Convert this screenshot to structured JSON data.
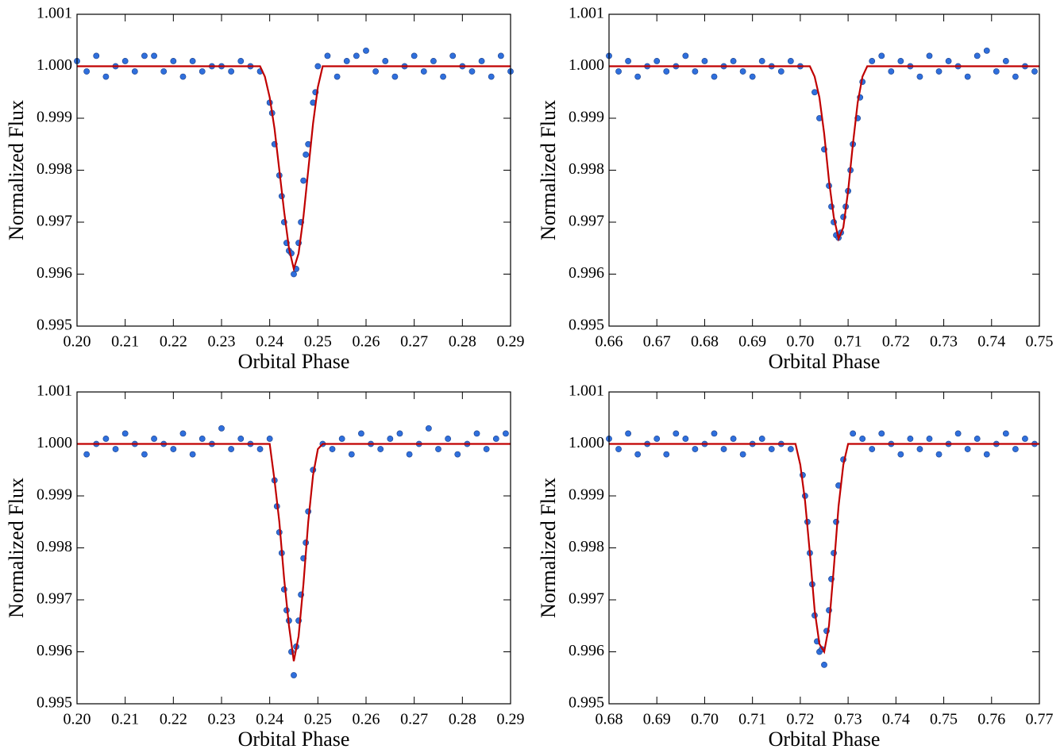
{
  "chart_data": [
    {
      "type": "scatter",
      "xlabel": "Orbital Phase",
      "ylabel": "Normalized Flux",
      "xlim": [
        0.2,
        0.29
      ],
      "ylim": [
        0.995,
        1.001
      ],
      "xticks": [
        {
          "value": 0.2,
          "label": "0.20"
        },
        0.21,
        0.22,
        0.23,
        0.24,
        0.25,
        0.26,
        0.27,
        0.28,
        0.29
      ],
      "yticks": [
        0.995,
        0.996,
        0.997,
        0.998,
        0.999,
        {
          "value": 1,
          "label": "1.000"
        },
        1.001
      ],
      "series": [
        {
          "mode": "markers",
          "color": "#2f6fdc",
          "x": [
            0.2,
            0.202,
            0.204,
            0.206,
            0.208,
            0.21,
            0.212,
            0.214,
            0.216,
            0.218,
            0.22,
            0.222,
            0.224,
            0.226,
            0.228,
            0.23,
            0.232,
            0.234,
            0.236,
            0.238,
            0.24,
            0.2405,
            0.241,
            0.242,
            0.2425,
            0.243,
            0.2435,
            0.244,
            0.2445,
            0.245,
            0.2455,
            0.246,
            0.2465,
            0.247,
            0.2475,
            0.248,
            0.249,
            0.2495,
            0.25,
            0.252,
            0.254,
            0.256,
            0.258,
            0.26,
            0.262,
            0.264,
            0.266,
            0.268,
            0.27,
            0.272,
            0.274,
            0.276,
            0.278,
            0.28,
            0.282,
            0.284,
            0.286,
            0.288,
            0.29
          ],
          "values": [
            1.0001,
            0.9999,
            1.0002,
            0.9998,
            1,
            1.0001,
            0.9999,
            1.0002,
            1.0002,
            0.9999,
            1.0001,
            0.9998,
            1.0001,
            0.9999,
            1,
            1,
            0.9999,
            1.0001,
            1,
            0.9999,
            0.9993,
            0.9991,
            0.9985,
            0.9979,
            0.9975,
            0.997,
            0.9966,
            0.99645,
            0.9964,
            0.996,
            0.9961,
            0.9966,
            0.997,
            0.9978,
            0.9983,
            0.9985,
            0.9993,
            0.9995,
            1,
            1.0002,
            0.9998,
            1.0001,
            1.0002,
            1.0003,
            0.9999,
            1.0001,
            0.9998,
            1,
            1.0002,
            0.9999,
            1.0001,
            0.9998,
            1.0002,
            1,
            0.9999,
            1.0001,
            0.9998,
            1.0002,
            0.9999
          ]
        },
        {
          "mode": "lines",
          "color": "#c00000",
          "x": [
            0.2,
            0.238,
            0.239,
            0.24,
            0.241,
            0.242,
            0.243,
            0.244,
            0.245,
            0.246,
            0.247,
            0.248,
            0.249,
            0.25,
            0.251,
            0.29
          ],
          "values": [
            1,
            1,
            0.9998,
            0.9994,
            0.9988,
            0.998,
            0.9972,
            0.9965,
            0.9961,
            0.9964,
            0.9971,
            0.998,
            0.9989,
            0.9996,
            1,
            1
          ]
        }
      ]
    },
    {
      "type": "scatter",
      "xlabel": "Orbital Phase",
      "ylabel": "Normalized Flux",
      "xlim": [
        0.66,
        0.75
      ],
      "ylim": [
        0.995,
        1.001
      ],
      "xticks": [
        0.66,
        0.67,
        0.68,
        0.69,
        {
          "value": 0.7,
          "label": "0.70"
        },
        0.71,
        0.72,
        0.73,
        0.74,
        0.75
      ],
      "yticks": [
        0.995,
        0.996,
        0.997,
        0.998,
        0.999,
        {
          "value": 1,
          "label": "1.000"
        },
        1.001
      ],
      "series": [
        {
          "mode": "markers",
          "color": "#2f6fdc",
          "x": [
            0.66,
            0.662,
            0.664,
            0.666,
            0.668,
            0.67,
            0.672,
            0.674,
            0.676,
            0.678,
            0.68,
            0.682,
            0.684,
            0.686,
            0.688,
            0.69,
            0.692,
            0.694,
            0.696,
            0.698,
            0.7,
            0.703,
            0.704,
            0.705,
            0.706,
            0.7065,
            0.707,
            0.7075,
            0.708,
            0.7085,
            0.709,
            0.7095,
            0.71,
            0.7105,
            0.711,
            0.712,
            0.7125,
            0.713,
            0.715,
            0.717,
            0.719,
            0.721,
            0.723,
            0.725,
            0.727,
            0.729,
            0.731,
            0.733,
            0.735,
            0.737,
            0.739,
            0.741,
            0.743,
            0.745,
            0.747,
            0.749
          ],
          "values": [
            1.0002,
            0.9999,
            1.0001,
            0.9998,
            1,
            1.0001,
            0.9999,
            1,
            1.0002,
            0.9999,
            1.0001,
            0.9998,
            1,
            1.0001,
            0.9999,
            0.9998,
            1.0001,
            1,
            0.9999,
            1.0001,
            1,
            0.9995,
            0.999,
            0.9984,
            0.9977,
            0.9973,
            0.997,
            0.99675,
            0.9967,
            0.9968,
            0.9971,
            0.9973,
            0.9976,
            0.998,
            0.9985,
            0.999,
            0.9994,
            0.9997,
            1.0001,
            1.0002,
            0.9999,
            1.0001,
            1,
            0.9998,
            1.0002,
            0.9999,
            1.0001,
            1,
            0.9998,
            1.0002,
            1.0003,
            0.9999,
            1.0001,
            0.9998,
            1,
            0.9999
          ]
        },
        {
          "mode": "lines",
          "color": "#c00000",
          "x": [
            0.66,
            0.702,
            0.703,
            0.704,
            0.705,
            0.706,
            0.707,
            0.708,
            0.709,
            0.71,
            0.711,
            0.712,
            0.713,
            0.714,
            0.75
          ],
          "values": [
            1,
            1,
            0.9998,
            0.9994,
            0.9987,
            0.9978,
            0.9971,
            0.99668,
            0.9969,
            0.9976,
            0.9985,
            0.9993,
            0.9998,
            1,
            1
          ]
        }
      ]
    },
    {
      "type": "scatter",
      "xlabel": "Orbital Phase",
      "ylabel": "Normalized Flux",
      "xlim": [
        0.2,
        0.29
      ],
      "ylim": [
        0.995,
        1.001
      ],
      "xticks": [
        {
          "value": 0.2,
          "label": "0.20"
        },
        0.21,
        0.22,
        0.23,
        0.24,
        0.25,
        0.26,
        0.27,
        0.28,
        0.29
      ],
      "yticks": [
        0.995,
        0.996,
        0.997,
        0.998,
        0.999,
        {
          "value": 1,
          "label": "1.000"
        },
        1.001
      ],
      "series": [
        {
          "mode": "markers",
          "color": "#2f6fdc",
          "x": [
            0.202,
            0.204,
            0.206,
            0.208,
            0.21,
            0.212,
            0.214,
            0.216,
            0.218,
            0.22,
            0.222,
            0.224,
            0.226,
            0.228,
            0.23,
            0.232,
            0.234,
            0.236,
            0.238,
            0.24,
            0.241,
            0.2415,
            0.242,
            0.2425,
            0.243,
            0.2435,
            0.244,
            0.2445,
            0.245,
            0.2455,
            0.246,
            0.2465,
            0.247,
            0.2475,
            0.248,
            0.249,
            0.251,
            0.253,
            0.255,
            0.257,
            0.259,
            0.261,
            0.263,
            0.265,
            0.267,
            0.269,
            0.271,
            0.273,
            0.275,
            0.277,
            0.279,
            0.281,
            0.283,
            0.285,
            0.287,
            0.289
          ],
          "values": [
            0.9998,
            1,
            1.0001,
            0.9999,
            1.0002,
            1,
            0.9998,
            1.0001,
            1,
            0.9999,
            1.0002,
            0.9998,
            1.0001,
            1,
            1.0003,
            0.9999,
            1.0001,
            1,
            0.9999,
            1.0001,
            0.9993,
            0.9988,
            0.9983,
            0.9979,
            0.9972,
            0.9968,
            0.9966,
            0.996,
            0.99555,
            0.9961,
            0.9966,
            0.9971,
            0.9978,
            0.9981,
            0.9987,
            0.9995,
            1,
            0.9999,
            1.0001,
            0.9998,
            1.0002,
            1,
            0.9999,
            1.0001,
            1.0002,
            0.9998,
            1,
            1.0003,
            0.9999,
            1.0001,
            0.9998,
            1,
            1.0002,
            0.9999,
            1.0001,
            1.0002
          ]
        },
        {
          "mode": "lines",
          "color": "#c00000",
          "x": [
            0.2,
            0.24,
            0.241,
            0.242,
            0.243,
            0.244,
            0.245,
            0.246,
            0.247,
            0.248,
            0.249,
            0.25,
            0.251,
            0.29
          ],
          "values": [
            1,
            1,
            0.9993,
            0.9985,
            0.9974,
            0.9965,
            0.99582,
            0.9963,
            0.9973,
            0.9985,
            0.9994,
            0.9999,
            1,
            1
          ]
        }
      ]
    },
    {
      "type": "scatter",
      "xlabel": "Orbital Phase",
      "ylabel": "Normalized Flux",
      "xlim": [
        0.68,
        0.77
      ],
      "ylim": [
        0.995,
        1.001
      ],
      "xticks": [
        0.68,
        0.69,
        {
          "value": 0.7,
          "label": "0.70"
        },
        0.71,
        0.72,
        0.73,
        0.74,
        0.75,
        0.76,
        0.77
      ],
      "yticks": [
        0.995,
        0.996,
        0.997,
        0.998,
        0.999,
        {
          "value": 1,
          "label": "1.000"
        },
        1.001
      ],
      "series": [
        {
          "mode": "markers",
          "color": "#2f6fdc",
          "x": [
            0.68,
            0.682,
            0.684,
            0.686,
            0.688,
            0.69,
            0.692,
            0.694,
            0.696,
            0.698,
            0.7,
            0.702,
            0.704,
            0.706,
            0.708,
            0.71,
            0.712,
            0.714,
            0.716,
            0.718,
            0.7205,
            0.721,
            0.7215,
            0.722,
            0.7225,
            0.723,
            0.7235,
            0.724,
            0.7245,
            0.725,
            0.7255,
            0.726,
            0.7265,
            0.727,
            0.7275,
            0.728,
            0.729,
            0.731,
            0.733,
            0.735,
            0.737,
            0.739,
            0.741,
            0.743,
            0.745,
            0.747,
            0.749,
            0.751,
            0.753,
            0.755,
            0.757,
            0.759,
            0.761,
            0.763,
            0.765,
            0.767,
            0.769
          ],
          "values": [
            1.0001,
            0.9999,
            1.0002,
            0.9998,
            1,
            1.0001,
            0.9998,
            1.0002,
            1.0001,
            0.9999,
            1,
            1.0002,
            0.9999,
            1.0001,
            0.9998,
            1,
            1.0001,
            0.9999,
            1,
            0.9999,
            0.9994,
            0.999,
            0.9985,
            0.9979,
            0.9973,
            0.9967,
            0.9962,
            0.996,
            0.99605,
            0.99575,
            0.9964,
            0.9968,
            0.9974,
            0.9979,
            0.9985,
            0.9992,
            0.9997,
            1.0002,
            1.0001,
            0.9999,
            1.0002,
            1,
            0.9998,
            1.0001,
            0.9999,
            1.0001,
            0.9998,
            1,
            1.0002,
            0.9999,
            1.0001,
            0.9998,
            1,
            1.0002,
            0.9999,
            1.0001,
            1
          ]
        },
        {
          "mode": "lines",
          "color": "#c00000",
          "x": [
            0.68,
            0.719,
            0.72,
            0.721,
            0.722,
            0.723,
            0.724,
            0.725,
            0.726,
            0.727,
            0.728,
            0.729,
            0.73,
            0.77
          ],
          "values": [
            1,
            1,
            0.9996,
            0.9989,
            0.9979,
            0.9968,
            0.99615,
            0.996,
            0.9965,
            0.9976,
            0.9988,
            0.9996,
            1,
            1
          ]
        }
      ]
    }
  ]
}
